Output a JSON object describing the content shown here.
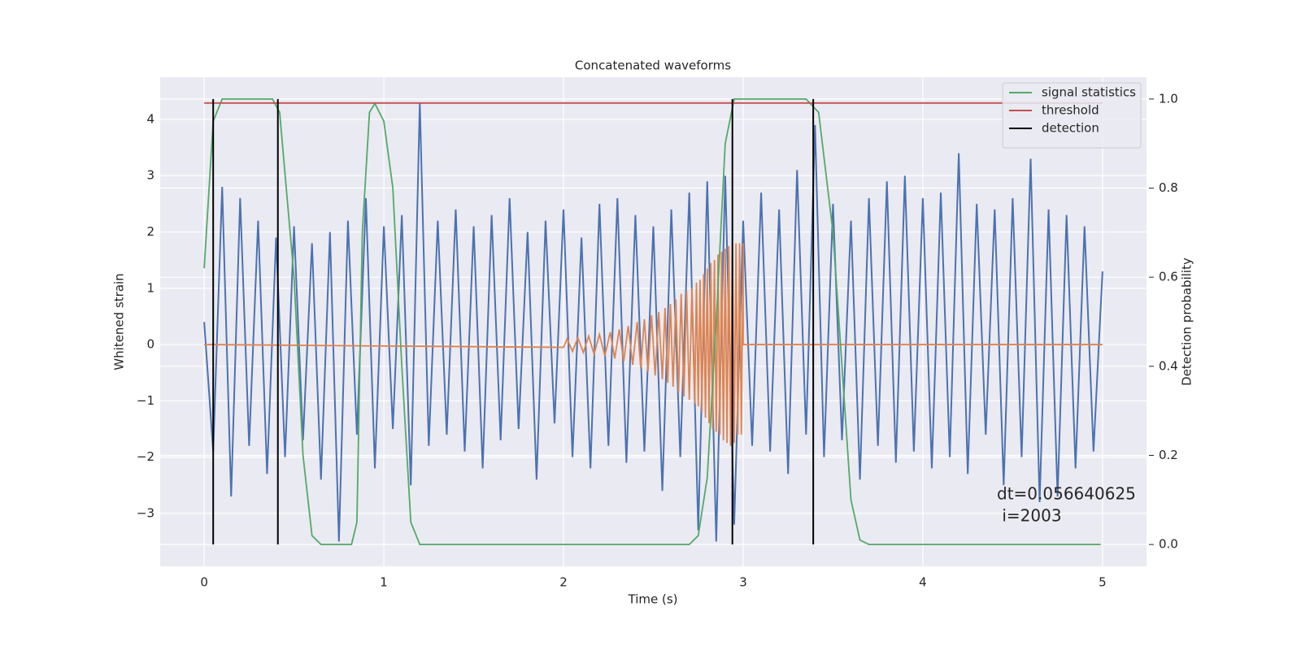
{
  "chart_data": {
    "type": "line",
    "title": "Concatenated waveforms",
    "xlabel": "Time (s)",
    "ylabel": "Whitened strain",
    "y2label": "Detection probability",
    "xlim": [
      -0.245,
      5.245
    ],
    "ylim": [
      -3.94,
      4.75
    ],
    "y2lim": [
      -0.049,
      1.049
    ],
    "xticks": [
      0,
      1,
      2,
      3,
      4,
      5
    ],
    "yticks": [
      {
        "value": -3,
        "label": "−3"
      },
      {
        "value": -2,
        "label": "−2"
      },
      {
        "value": -1,
        "label": "−1"
      },
      0,
      1,
      2,
      3,
      4
    ],
    "y2ticks": [
      {
        "value": 0,
        "label": "0.0"
      },
      0.2,
      0.4,
      0.6,
      0.8,
      {
        "value": 1,
        "label": "1.0"
      }
    ],
    "grid": true,
    "legend": "upper right",
    "series": [
      {
        "color": "#4c72b0",
        "x": [
          0,
          0.05,
          0.1,
          0.15,
          0.2,
          0.25,
          0.3,
          0.35,
          0.4,
          0.45,
          0.5,
          0.55,
          0.6,
          0.65,
          0.7,
          0.75,
          0.8,
          0.85,
          0.9,
          0.95,
          1,
          1.05,
          1.1,
          1.15,
          1.2,
          1.25,
          1.3,
          1.35,
          1.4,
          1.45,
          1.5,
          1.55,
          1.6,
          1.65,
          1.7,
          1.75,
          1.8,
          1.85,
          1.9,
          1.95,
          2,
          2.05,
          2.1,
          2.15,
          2.2,
          2.25,
          2.3,
          2.35,
          2.4,
          2.45,
          2.5,
          2.55,
          2.6,
          2.65,
          2.7,
          2.75,
          2.8,
          2.85,
          2.9,
          2.95,
          3,
          3.05,
          3.1,
          3.15,
          3.2,
          3.25,
          3.3,
          3.35,
          3.4,
          3.45,
          3.5,
          3.55,
          3.6,
          3.65,
          3.7,
          3.75,
          3.8,
          3.85,
          3.9,
          3.95,
          4,
          4.05,
          4.1,
          4.15,
          4.2,
          4.25,
          4.3,
          4.35,
          4.4,
          4.45,
          4.5,
          4.55,
          4.6,
          4.65,
          4.7,
          4.75,
          4.8,
          4.85,
          4.9,
          4.95,
          5
        ],
        "values": [
          0.4,
          -1.9,
          2.8,
          -2.7,
          2.6,
          -1.8,
          2.2,
          -2.3,
          1.9,
          -2.0,
          2.1,
          -1.7,
          1.8,
          -2.4,
          2.0,
          -3.5,
          2.2,
          -1.6,
          2.6,
          -2.2,
          2.1,
          -1.5,
          2.3,
          -2.5,
          4.3,
          -1.8,
          2.2,
          -1.6,
          2.4,
          -1.9,
          2.1,
          -2.2,
          2.3,
          -1.7,
          2.6,
          -1.5,
          2.0,
          -2.4,
          2.2,
          -1.4,
          2.4,
          -2.0,
          1.9,
          -2.2,
          2.5,
          -1.8,
          2.6,
          -2.1,
          2.3,
          -1.9,
          2.1,
          -2.6,
          2.4,
          -2.0,
          2.7,
          -3.3,
          2.9,
          -3.5,
          3.0,
          -3.2,
          2.2,
          -1.8,
          2.7,
          -1.9,
          2.4,
          -2.3,
          3.1,
          -1.6,
          3.9,
          -2.0,
          2.5,
          -1.7,
          2.2,
          -2.4,
          2.6,
          -1.8,
          2.9,
          -2.1,
          3.0,
          -1.9,
          2.6,
          -2.2,
          2.7,
          -2.0,
          3.4,
          -2.3,
          2.5,
          -1.6,
          2.4,
          -2.5,
          2.6,
          -2.0,
          3.3,
          -2.8,
          2.4,
          -2.7,
          2.3,
          -2.2,
          2.1,
          -1.9,
          1.3
        ]
      },
      {
        "color": "#dd8452",
        "x": [
          0,
          2.0,
          2.02,
          2.05,
          2.08,
          2.11,
          2.14,
          2.17,
          2.2,
          2.23,
          2.26,
          2.285,
          2.31,
          2.335,
          2.36,
          2.385,
          2.41,
          2.43,
          2.45,
          2.47,
          2.49,
          2.51,
          2.53,
          2.55,
          2.565,
          2.58,
          2.595,
          2.61,
          2.625,
          2.64,
          2.655,
          2.67,
          2.685,
          2.7,
          2.715,
          2.73,
          2.74,
          2.75,
          2.76,
          2.77,
          2.78,
          2.79,
          2.8,
          2.81,
          2.82,
          2.83,
          2.84,
          2.85,
          2.86,
          2.87,
          2.88,
          2.89,
          2.9,
          2.91,
          2.92,
          2.93,
          2.94,
          2.95,
          2.96,
          2.97,
          2.98,
          2.99,
          3.0,
          3.0,
          5.0
        ],
        "values": [
          0,
          -0.05,
          0.1,
          -0.12,
          0.12,
          -0.14,
          0.15,
          -0.17,
          0.18,
          -0.2,
          0.22,
          -0.25,
          0.27,
          -0.3,
          0.33,
          -0.36,
          0.4,
          -0.42,
          0.45,
          -0.48,
          0.52,
          -0.55,
          0.58,
          -0.62,
          0.65,
          -0.68,
          0.72,
          -0.75,
          0.8,
          -0.85,
          0.9,
          -0.92,
          0.95,
          -0.98,
          1.0,
          -1.05,
          1.1,
          -1.1,
          1.15,
          -1.2,
          1.25,
          -1.3,
          1.35,
          -1.4,
          1.45,
          -1.5,
          1.5,
          -1.55,
          1.6,
          -1.6,
          1.65,
          -1.7,
          1.7,
          -1.75,
          1.75,
          -1.8,
          1.8,
          -1.75,
          1.8,
          -1.6,
          1.8,
          -1.6,
          1.8,
          0,
          0
        ]
      },
      {
        "name": "signal statistics",
        "color": "#55a868",
        "axis": "y2",
        "x": [
          0,
          0.05,
          0.1,
          0.38,
          0.42,
          0.5,
          0.55,
          0.6,
          0.65,
          0.82,
          0.85,
          0.88,
          0.92,
          0.95,
          1.0,
          1.05,
          1.1,
          1.15,
          1.2,
          2.7,
          2.75,
          2.8,
          2.85,
          2.9,
          2.95,
          3.35,
          3.42,
          3.5,
          3.55,
          3.6,
          3.65,
          3.7,
          4.99
        ],
        "values": [
          0.62,
          0.95,
          1.0,
          1.0,
          0.97,
          0.6,
          0.2,
          0.02,
          0,
          0,
          0.05,
          0.7,
          0.97,
          0.99,
          0.95,
          0.8,
          0.4,
          0.05,
          0,
          0,
          0.02,
          0.15,
          0.5,
          0.9,
          1.0,
          1.0,
          0.97,
          0.7,
          0.4,
          0.1,
          0.01,
          0,
          0
        ]
      },
      {
        "name": "threshold",
        "color": "#c44e52",
        "axis": "y2",
        "x": [
          0,
          5
        ],
        "values": [
          0.991,
          0.991
        ]
      }
    ],
    "detection": {
      "name": "detection",
      "color": "#000000",
      "x": [
        0.05,
        0.41,
        2.94,
        3.39
      ]
    },
    "annotation": [
      "dt=0.056640625",
      " i=2003"
    ]
  }
}
